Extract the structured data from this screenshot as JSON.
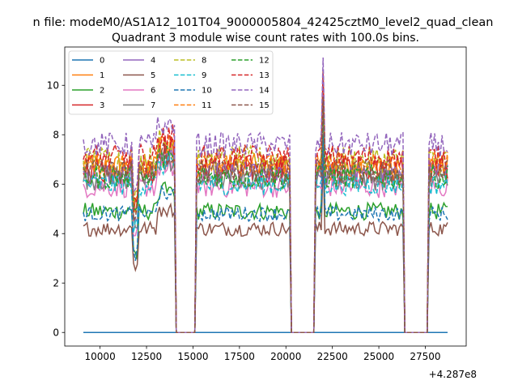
{
  "figure": {
    "suptitle": "n file: modeM0/AS1A12_101T04_9000005804_42425cztM0_level2_quad_clean",
    "title": "Quadrant 3 module wise count rates with 100.0s bins.",
    "offset_label": "+4.287e8"
  },
  "chart_data": {
    "type": "line",
    "title": "Quadrant 3 module wise count rates with 100.0s bins.",
    "xlabel": "",
    "ylabel": "",
    "x_offset": 428700000,
    "xlim": [
      8100,
      29700
    ],
    "ylim": [
      -0.55,
      11.55
    ],
    "xticks": [
      10000,
      12500,
      15000,
      17500,
      20000,
      22500,
      25000,
      27500
    ],
    "xtick_labels": [
      "10000",
      "12500",
      "15000",
      "17500",
      "20000",
      "22500",
      "25000",
      "27500"
    ],
    "yticks": [
      0,
      2,
      4,
      6,
      8,
      10
    ],
    "ytick_labels": [
      "0",
      "2",
      "4",
      "6",
      "8",
      "10"
    ],
    "x_range": [
      9100,
      28700
    ],
    "bin_size": 100,
    "grid": false,
    "legend": "upper-left",
    "gaps": [
      [
        14050,
        15150
      ],
      [
        20250,
        21550
      ],
      [
        26350,
        27650
      ]
    ],
    "series": [
      {
        "name": "0",
        "color": "#1f77b4",
        "dash": "solid",
        "level": 0.0,
        "spread": 0.0
      },
      {
        "name": "1",
        "color": "#ff7f0e",
        "dash": "solid",
        "level": 6.7,
        "spread": 0.55
      },
      {
        "name": "2",
        "color": "#2ca02c",
        "dash": "solid",
        "level": 4.9,
        "spread": 0.35
      },
      {
        "name": "3",
        "color": "#d62728",
        "dash": "solid",
        "level": 6.6,
        "spread": 0.6
      },
      {
        "name": "4",
        "color": "#9467bd",
        "dash": "solid",
        "level": 6.4,
        "spread": 0.5
      },
      {
        "name": "5",
        "color": "#8c564b",
        "dash": "solid",
        "level": 4.2,
        "spread": 0.3
      },
      {
        "name": "6",
        "color": "#e377c2",
        "dash": "solid",
        "level": 5.9,
        "spread": 0.45
      },
      {
        "name": "7",
        "color": "#7f7f7f",
        "dash": "solid",
        "level": 6.2,
        "spread": 0.45
      },
      {
        "name": "8",
        "color": "#bcbd22",
        "dash": "dashed",
        "level": 7.0,
        "spread": 0.55
      },
      {
        "name": "9",
        "color": "#17becf",
        "dash": "dashed",
        "level": 6.0,
        "spread": 0.45
      },
      {
        "name": "10",
        "color": "#1f77b4",
        "dash": "dashed",
        "level": 4.8,
        "spread": 0.3
      },
      {
        "name": "11",
        "color": "#ff7f0e",
        "dash": "dashed",
        "level": 6.8,
        "spread": 0.5
      },
      {
        "name": "12",
        "color": "#2ca02c",
        "dash": "dashed",
        "level": 6.3,
        "spread": 0.5
      },
      {
        "name": "13",
        "color": "#d62728",
        "dash": "dashed",
        "level": 7.1,
        "spread": 0.5
      },
      {
        "name": "14",
        "color": "#9467bd",
        "dash": "dashed",
        "level": 7.6,
        "spread": 0.5
      },
      {
        "name": "15",
        "color": "#8c564b",
        "dash": "dashed",
        "level": 6.5,
        "spread": 0.5
      }
    ]
  }
}
